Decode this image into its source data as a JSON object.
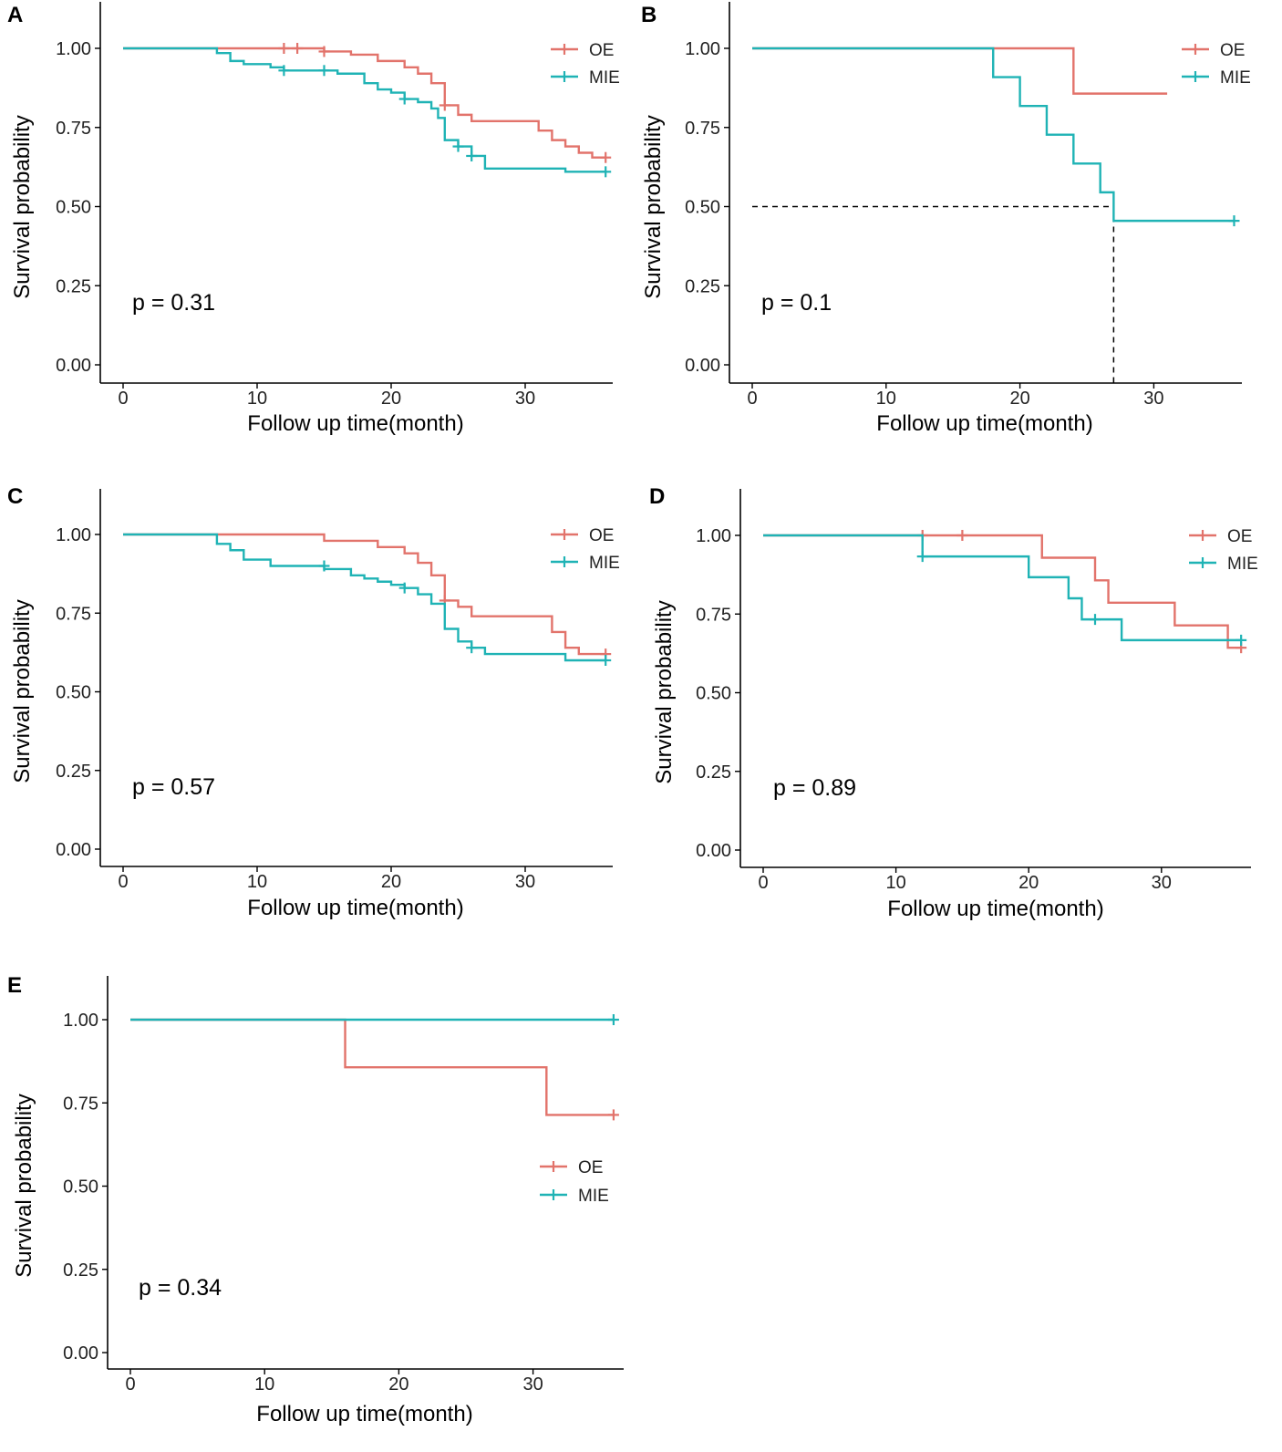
{
  "colors": {
    "OE": "#e2736b",
    "MIE": "#1fb3b5",
    "axis": "#000000",
    "guide": "#000000"
  },
  "chart_data": [
    {
      "type": "line",
      "panel": "A",
      "xlabel": "Follow up time(month)",
      "ylabel": "Survival probability",
      "xlim": [
        0,
        36
      ],
      "ylim": [
        0,
        1
      ],
      "x_ticks": [
        0,
        10,
        20,
        30
      ],
      "x_tick_labels": [
        "0",
        "10",
        "20",
        "30"
      ],
      "y_ticks": [
        0,
        0.25,
        0.5,
        0.75,
        1
      ],
      "y_tick_labels": [
        "0.00",
        "0.25",
        "0.50",
        "0.75",
        "1.00"
      ],
      "annotation": "p = 0.31",
      "legend_position": "top-right",
      "series": [
        {
          "name": "OE",
          "color_key": "OE",
          "steps": [
            [
              0,
              1
            ],
            [
              15,
              0.99
            ],
            [
              17,
              0.98
            ],
            [
              19,
              0.96
            ],
            [
              21,
              0.94
            ],
            [
              22,
              0.92
            ],
            [
              23,
              0.89
            ],
            [
              24,
              0.82
            ],
            [
              25,
              0.79
            ],
            [
              26,
              0.77
            ],
            [
              31,
              0.74
            ],
            [
              32,
              0.71
            ],
            [
              33,
              0.69
            ],
            [
              34,
              0.67
            ],
            [
              35,
              0.655
            ],
            [
              36,
              0.655
            ]
          ],
          "censor": [
            [
              12,
              1
            ],
            [
              13,
              1
            ],
            [
              15,
              0.99
            ],
            [
              24,
              0.82
            ],
            [
              36,
              0.655
            ]
          ]
        },
        {
          "name": "MIE",
          "color_key": "MIE",
          "steps": [
            [
              0,
              1
            ],
            [
              7,
              0.985
            ],
            [
              8,
              0.96
            ],
            [
              9,
              0.95
            ],
            [
              11,
              0.94
            ],
            [
              12,
              0.93
            ],
            [
              16,
              0.92
            ],
            [
              18,
              0.89
            ],
            [
              19,
              0.87
            ],
            [
              20,
              0.86
            ],
            [
              21,
              0.84
            ],
            [
              22,
              0.83
            ],
            [
              23,
              0.81
            ],
            [
              23.5,
              0.78
            ],
            [
              24,
              0.71
            ],
            [
              25,
              0.69
            ],
            [
              26,
              0.66
            ],
            [
              27,
              0.62
            ],
            [
              33,
              0.61
            ],
            [
              36,
              0.61
            ]
          ],
          "censor": [
            [
              12,
              0.93
            ],
            [
              15,
              0.93
            ],
            [
              21,
              0.84
            ],
            [
              25,
              0.69
            ],
            [
              26,
              0.66
            ],
            [
              36,
              0.61
            ]
          ]
        }
      ]
    },
    {
      "type": "line",
      "panel": "B",
      "xlabel": "Follow up time(month)",
      "ylabel": "Survival probability",
      "xlim": [
        0,
        36
      ],
      "ylim": [
        0,
        1
      ],
      "x_ticks": [
        0,
        10,
        20,
        30
      ],
      "x_tick_labels": [
        "0",
        "10",
        "20",
        "30"
      ],
      "y_ticks": [
        0,
        0.25,
        0.5,
        0.75,
        1
      ],
      "y_tick_labels": [
        "0.00",
        "0.25",
        "0.50",
        "0.75",
        "1.00"
      ],
      "annotation": "p = 0.1",
      "legend_position": "top-right",
      "median_line": {
        "y": 0.5,
        "x": 27
      },
      "series": [
        {
          "name": "OE",
          "color_key": "OE",
          "steps": [
            [
              0,
              1
            ],
            [
              24,
              0.857
            ],
            [
              31,
              0.857
            ]
          ],
          "censor": []
        },
        {
          "name": "MIE",
          "color_key": "MIE",
          "steps": [
            [
              0,
              1
            ],
            [
              18,
              0.909
            ],
            [
              20,
              0.818
            ],
            [
              22,
              0.727
            ],
            [
              24,
              0.636
            ],
            [
              26,
              0.545
            ],
            [
              27,
              0.455
            ],
            [
              36,
              0.455
            ]
          ],
          "censor": [
            [
              36,
              0.455
            ]
          ]
        }
      ]
    },
    {
      "type": "line",
      "panel": "C",
      "xlabel": "Follow up time(month)",
      "ylabel": "Survival probability",
      "xlim": [
        0,
        36
      ],
      "ylim": [
        0,
        1
      ],
      "x_ticks": [
        0,
        10,
        20,
        30
      ],
      "x_tick_labels": [
        "0",
        "10",
        "20",
        "30"
      ],
      "y_ticks": [
        0,
        0.25,
        0.5,
        0.75,
        1
      ],
      "y_tick_labels": [
        "0.00",
        "0.25",
        "0.50",
        "0.75",
        "1.00"
      ],
      "annotation": "p = 0.57",
      "legend_position": "top-right",
      "series": [
        {
          "name": "OE",
          "color_key": "OE",
          "steps": [
            [
              0,
              1
            ],
            [
              15,
              0.98
            ],
            [
              19,
              0.96
            ],
            [
              21,
              0.94
            ],
            [
              22,
              0.91
            ],
            [
              23,
              0.87
            ],
            [
              24,
              0.79
            ],
            [
              25,
              0.77
            ],
            [
              26,
              0.74
            ],
            [
              32,
              0.69
            ],
            [
              33,
              0.64
            ],
            [
              34,
              0.62
            ],
            [
              36,
              0.62
            ]
          ],
          "censor": [
            [
              24,
              0.79
            ],
            [
              36,
              0.62
            ]
          ]
        },
        {
          "name": "MIE",
          "color_key": "MIE",
          "steps": [
            [
              0,
              1
            ],
            [
              7,
              0.97
            ],
            [
              8,
              0.95
            ],
            [
              9,
              0.92
            ],
            [
              11,
              0.9
            ],
            [
              15,
              0.89
            ],
            [
              17,
              0.87
            ],
            [
              18,
              0.86
            ],
            [
              19,
              0.85
            ],
            [
              20,
              0.84
            ],
            [
              21,
              0.83
            ],
            [
              22,
              0.81
            ],
            [
              23,
              0.78
            ],
            [
              24,
              0.7
            ],
            [
              25,
              0.66
            ],
            [
              26,
              0.64
            ],
            [
              27,
              0.62
            ],
            [
              33,
              0.6
            ],
            [
              36,
              0.6
            ]
          ],
          "censor": [
            [
              15,
              0.9
            ],
            [
              21,
              0.83
            ],
            [
              26,
              0.64
            ],
            [
              36,
              0.6
            ]
          ]
        }
      ]
    },
    {
      "type": "line",
      "panel": "D",
      "xlabel": "Follow up time(month)",
      "ylabel": "Survival probability",
      "xlim": [
        0,
        36
      ],
      "ylim": [
        0,
        1
      ],
      "x_ticks": [
        0,
        10,
        20,
        30
      ],
      "x_tick_labels": [
        "0",
        "10",
        "20",
        "30"
      ],
      "y_ticks": [
        0,
        0.25,
        0.5,
        0.75,
        1
      ],
      "y_tick_labels": [
        "0.00",
        "0.25",
        "0.50",
        "0.75",
        "1.00"
      ],
      "annotation": "p = 0.89",
      "legend_position": "top-right",
      "series": [
        {
          "name": "OE",
          "color_key": "OE",
          "steps": [
            [
              0,
              1
            ],
            [
              21,
              0.929
            ],
            [
              25,
              0.857
            ],
            [
              26,
              0.786
            ],
            [
              31,
              0.714
            ],
            [
              35,
              0.643
            ],
            [
              36,
              0.643
            ]
          ],
          "censor": [
            [
              12,
              1
            ],
            [
              15,
              1
            ],
            [
              36,
              0.643
            ]
          ]
        },
        {
          "name": "MIE",
          "color_key": "MIE",
          "steps": [
            [
              0,
              1
            ],
            [
              12,
              0.933
            ],
            [
              20,
              0.867
            ],
            [
              23,
              0.8
            ],
            [
              24,
              0.733
            ],
            [
              27,
              0.667
            ],
            [
              36,
              0.667
            ]
          ],
          "censor": [
            [
              12,
              0.933
            ],
            [
              25,
              0.733
            ],
            [
              36,
              0.667
            ]
          ]
        }
      ]
    },
    {
      "type": "line",
      "panel": "E",
      "xlabel": "Follow up time(month)",
      "ylabel": "Survival probability",
      "xlim": [
        0,
        36
      ],
      "ylim": [
        0,
        1
      ],
      "x_ticks": [
        0,
        10,
        20,
        30
      ],
      "x_tick_labels": [
        "0",
        "10",
        "20",
        "30"
      ],
      "y_ticks": [
        0,
        0.25,
        0.5,
        0.75,
        1
      ],
      "y_tick_labels": [
        "0.00",
        "0.25",
        "0.50",
        "0.75",
        "1.00"
      ],
      "annotation": "p = 0.34",
      "legend_position": "right",
      "series": [
        {
          "name": "OE",
          "color_key": "OE",
          "steps": [
            [
              0,
              1
            ],
            [
              16,
              0.857
            ],
            [
              31,
              0.714
            ],
            [
              36,
              0.714
            ]
          ],
          "censor": [
            [
              36,
              0.714
            ]
          ]
        },
        {
          "name": "MIE",
          "color_key": "MIE",
          "steps": [
            [
              0,
              1
            ],
            [
              36,
              1
            ]
          ],
          "censor": [
            [
              36,
              1
            ]
          ]
        }
      ]
    }
  ]
}
